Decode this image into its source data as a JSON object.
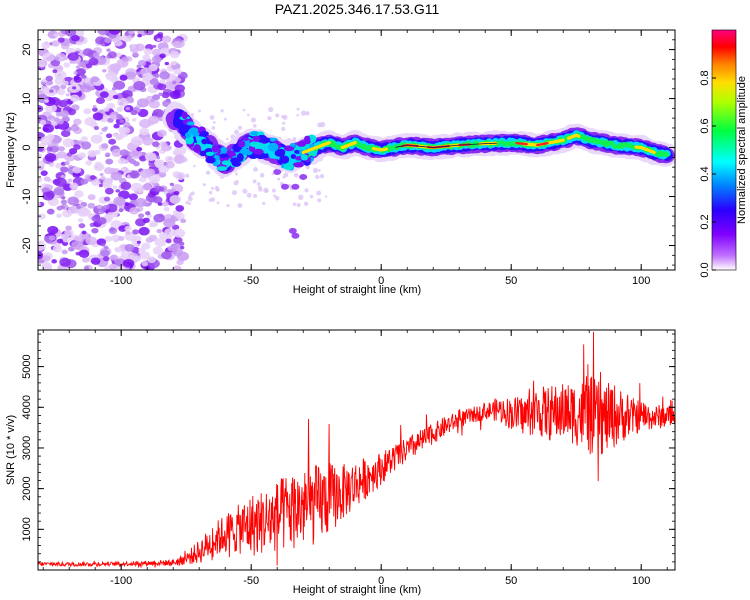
{
  "figure_title": "PAZ1.2025.346.17.53.G11",
  "chart_data": [
    {
      "type": "heatmap",
      "title": "PAZ1.2025.346.17.53.G11",
      "xlabel": "Height of straight line (km)",
      "ylabel": "Frequency (Hz)",
      "xlim": [
        -132,
        113
      ],
      "ylim": [
        -25,
        24
      ],
      "xticks": [
        -100,
        -50,
        0,
        50,
        100
      ],
      "yticks": [
        -20,
        -10,
        0,
        10,
        20
      ],
      "colorbar": {
        "label": "Normalized spectral amplitude",
        "range": [
          0.0,
          1.0
        ],
        "ticks": [
          "0.0",
          "0.2",
          "0.4",
          "0.6",
          "0.8"
        ],
        "colormap": [
          "#e8c8f8",
          "#7f00ff",
          "#0000ff",
          "#00ffff",
          "#00ff00",
          "#ffff00",
          "#ff7f00",
          "#ff0000",
          "#ff007f"
        ]
      },
      "ridge": {
        "description": "Signal ridge frequency vs height",
        "x": [
          -78,
          -72,
          -66,
          -60,
          -55,
          -50,
          -45,
          -40,
          -35,
          -30,
          -25,
          -20,
          -15,
          -10,
          -5,
          0,
          10,
          20,
          30,
          40,
          50,
          60,
          70,
          75,
          80,
          90,
          100,
          105,
          110
        ],
        "y": [
          6,
          2,
          0,
          -3,
          -1,
          1,
          0,
          -1,
          -2,
          -1,
          0,
          1,
          0,
          1,
          0,
          -0.5,
          0.5,
          0,
          0.5,
          0.8,
          1,
          0.5,
          1.5,
          2.5,
          1.5,
          0.5,
          0,
          -1,
          -1.5
        ]
      },
      "noise_region_x": [
        -132,
        -76
      ]
    },
    {
      "type": "line",
      "xlabel": "Height of straight line (km)",
      "ylabel": "SNR (10 * v/v)",
      "xlim": [
        -132,
        113
      ],
      "ylim": [
        0,
        5900
      ],
      "xticks": [
        -100,
        -50,
        0,
        50,
        100
      ],
      "yticks": [
        1000,
        2000,
        3000,
        4000,
        5000
      ],
      "color": "#ff0000",
      "series": [
        {
          "name": "SNR",
          "x": [
            -132,
            -120,
            -110,
            -100,
            -90,
            -80,
            -75,
            -70,
            -65,
            -60,
            -55,
            -50,
            -45,
            -40,
            -35,
            -30,
            -25,
            -20,
            -15,
            -10,
            -5,
            0,
            5,
            10,
            15,
            20,
            25,
            30,
            35,
            40,
            45,
            50,
            55,
            60,
            65,
            70,
            75,
            80,
            85,
            90,
            95,
            100,
            105,
            110,
            113
          ],
          "y": [
            150,
            140,
            150,
            150,
            170,
            180,
            280,
            450,
            700,
            900,
            1000,
            1100,
            1200,
            1300,
            1450,
            1550,
            1600,
            1750,
            1900,
            2100,
            2300,
            2500,
            2750,
            2950,
            3150,
            3350,
            3550,
            3700,
            3800,
            3900,
            3950,
            3850,
            3800,
            3900,
            3850,
            3900,
            3850,
            3800,
            3700,
            3800,
            3750,
            3800,
            3750,
            3800,
            3750
          ],
          "spread": [
            50,
            50,
            50,
            50,
            60,
            80,
            150,
            300,
            400,
            500,
            600,
            800,
            800,
            900,
            1000,
            1000,
            1000,
            900,
            700,
            600,
            500,
            400,
            350,
            300,
            300,
            250,
            250,
            200,
            200,
            200,
            300,
            400,
            500,
            600,
            700,
            700,
            800,
            1000,
            900,
            800,
            500,
            400,
            300,
            300,
            200
          ]
        }
      ]
    }
  ]
}
